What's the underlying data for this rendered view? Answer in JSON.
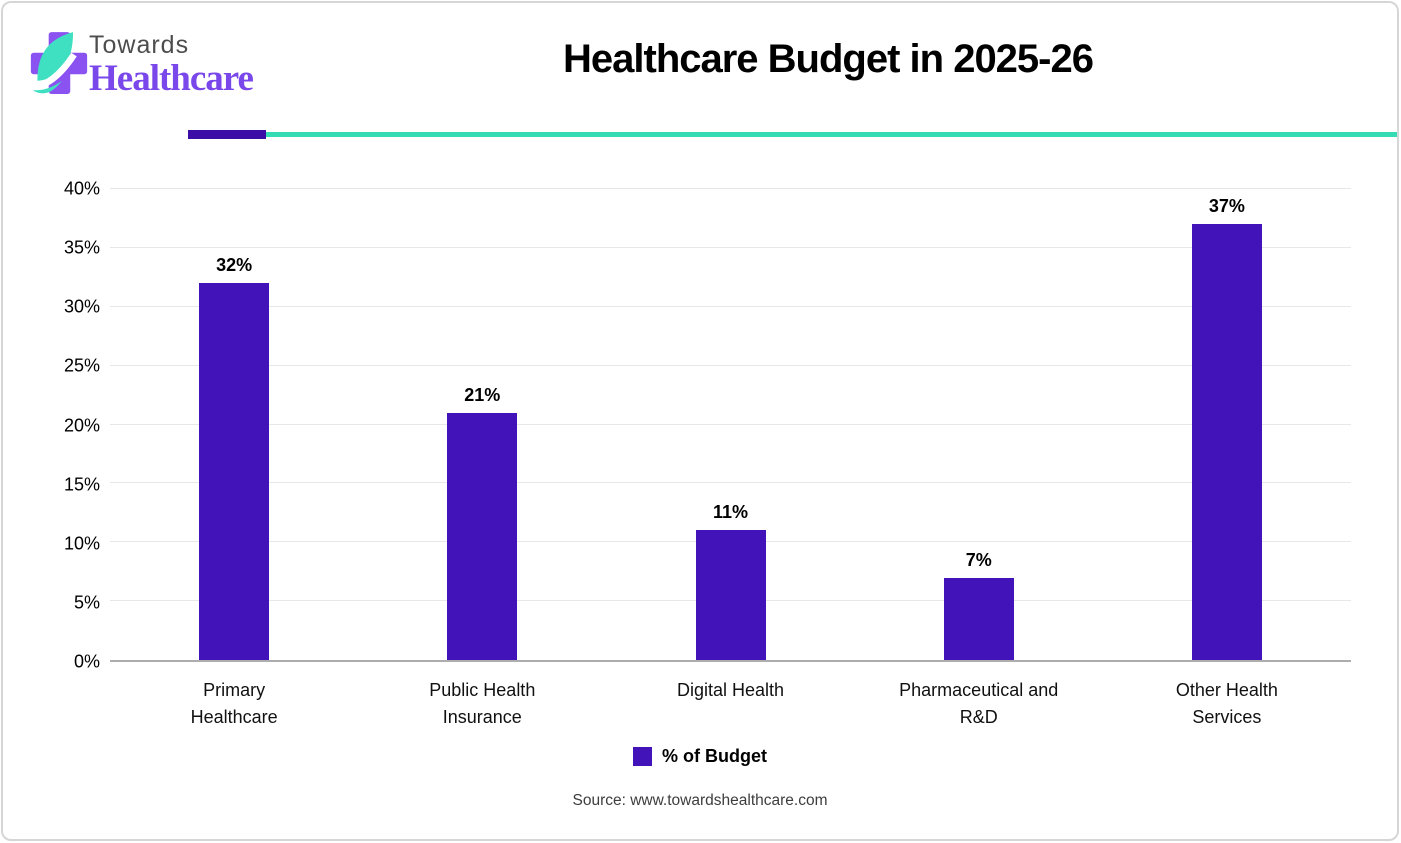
{
  "header": {
    "logo_line1": "Towards",
    "logo_line2": "Healthcare",
    "title": "Healthcare Budget in 2025-26"
  },
  "chart_data": {
    "type": "bar",
    "title": "Healthcare Budget in 2025-26",
    "categories": [
      "Primary\nHealthcare",
      "Public Health\nInsurance",
      "Digital Health",
      "Pharmaceutical and\nR&D",
      "Other Health\nServices"
    ],
    "values": [
      32,
      21,
      11,
      7,
      37
    ],
    "value_labels": [
      "32%",
      "21%",
      "11%",
      "7%",
      "37%"
    ],
    "series_name": "% of Budget",
    "xlabel": "",
    "ylabel": "",
    "ylim": [
      0,
      40
    ],
    "ytick_step": 5,
    "ytick_labels": [
      "0%",
      "5%",
      "10%",
      "15%",
      "20%",
      "25%",
      "30%",
      "35%",
      "40%"
    ],
    "grid": true,
    "legend_position": "bottom"
  },
  "legend": {
    "label": "% of Budget"
  },
  "footer": {
    "source": "Source: www.towardshealthcare.com"
  },
  "colors": {
    "bar": "#4113b8",
    "divider_purple": "#3b0da6",
    "divider_teal": "#35dbb2",
    "logo_cross": "#8a52f0",
    "logo_leaf": "#3fe0c2",
    "logo_text_purple": "#7a48ea"
  }
}
